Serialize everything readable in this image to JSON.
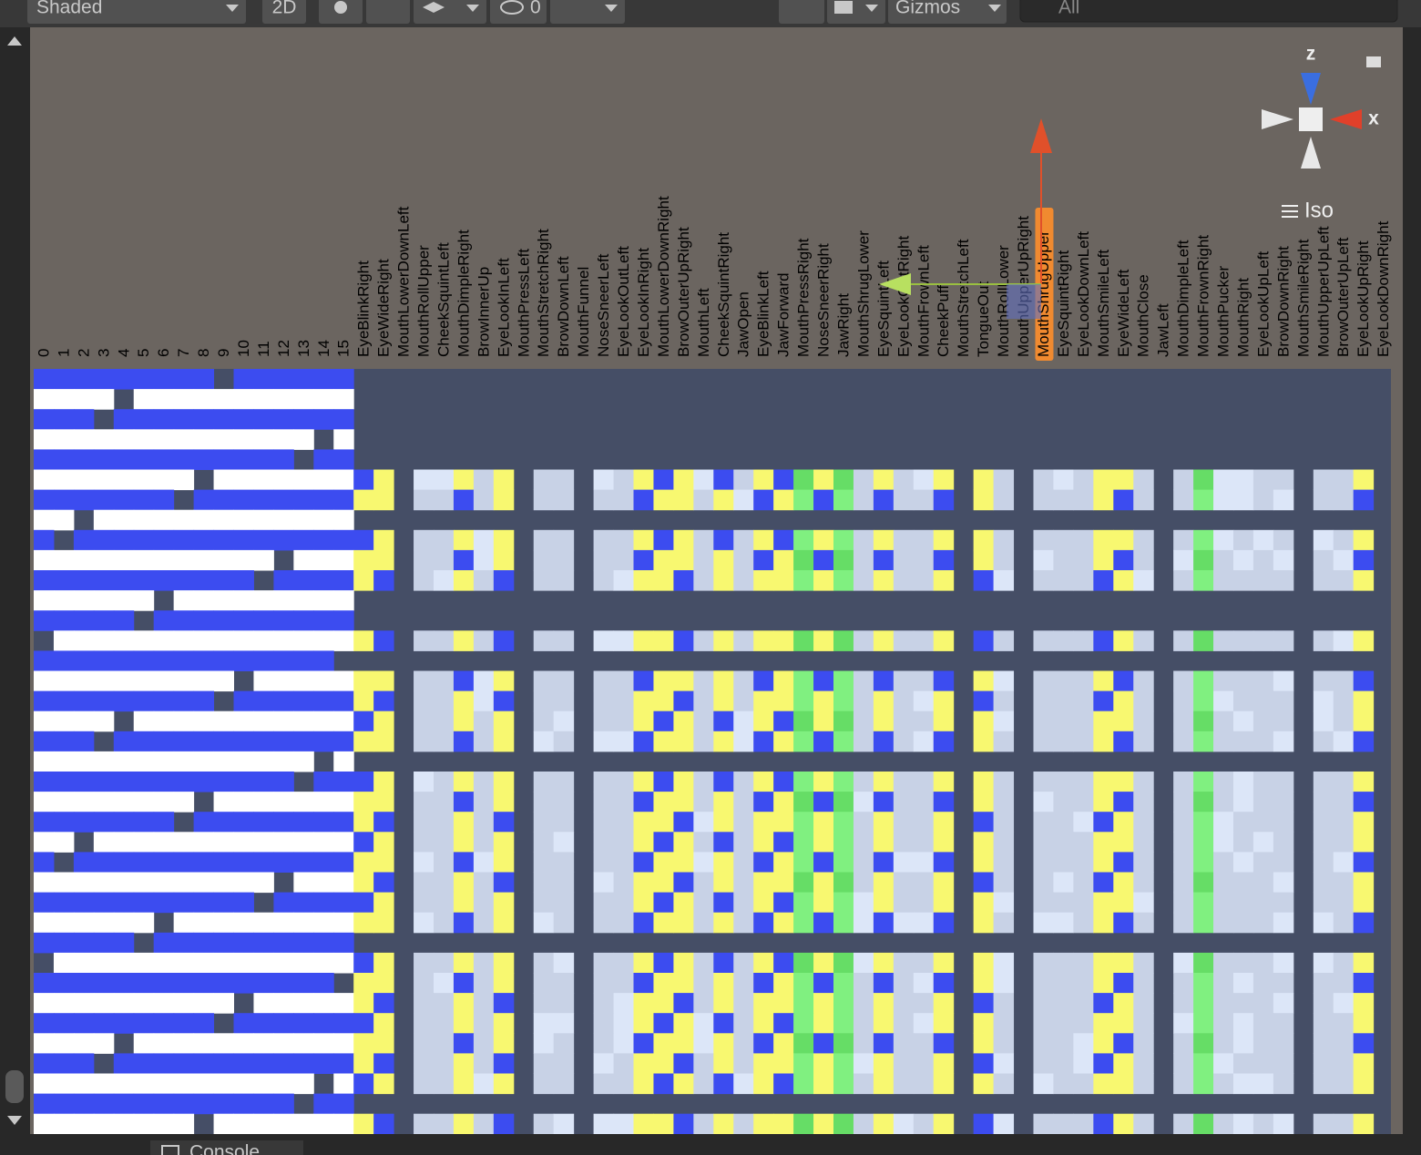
{
  "toolbar": {
    "shading_mode": "Shaded",
    "mode_2d": "2D",
    "hidden_count": "0",
    "gizmos": "Gizmos",
    "search_placeholder": "All"
  },
  "gizmo": {
    "axis_z": "z",
    "axis_x": "x",
    "projection": "Iso"
  },
  "grid": {
    "column_labels": [
      "0",
      "1",
      "2",
      "3",
      "4",
      "5",
      "6",
      "7",
      "8",
      "9",
      "10",
      "11",
      "12",
      "13",
      "14",
      "15",
      "EyeBlinkRight",
      "EyeWideRight",
      "MouthLowerDownLeft",
      "MouthRollUpper",
      "CheekSquintLeft",
      "MouthDimpleRight",
      "BrowInnerUp",
      "EyeLookInLeft",
      "MouthPressLeft",
      "MouthStretchRight",
      "BrowDownLeft",
      "MouthFunnel",
      "NoseSneerLeft",
      "EyeLookOutLeft",
      "EyeLookInRight",
      "MouthLowerDownRight",
      "BrowOuterUpRight",
      "MouthLeft",
      "CheekSquintRight",
      "JawOpen",
      "EyeBlinkLeft",
      "JawForward",
      "MouthPressRight",
      "NoseSneerRight",
      "JawRight",
      "MouthShrugLower",
      "EyeSquintLeft",
      "EyeLookOutRight",
      "MouthFrownLeft",
      "CheekPuff",
      "MouthStretchLeft",
      "TongueOut",
      "MouthRollLower",
      "MouthUpperUpRight",
      "MouthShrugUpper",
      "EyeSquintRight",
      "EyeLookDownLeft",
      "MouthSmileLeft",
      "EyeWideLeft",
      "MouthClose",
      "JawLeft",
      "MouthDimpleLeft",
      "MouthFrownRight",
      "MouthPucker",
      "MouthRight",
      "EyeLookUpLeft",
      "BrowDownRight",
      "MouthSmileRight",
      "MouthUpperUpLeft",
      "BrowOuterUpLeft",
      "EyeLookUpRight",
      "EyeLookDownRight"
    ]
  },
  "bottom_bar": {
    "tab": "Console"
  }
}
